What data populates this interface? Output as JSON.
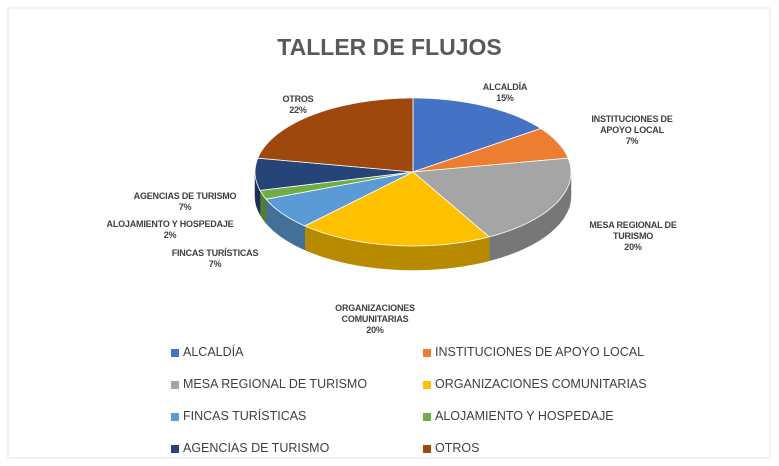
{
  "chart_data": {
    "type": "pie",
    "title": "TALLER DE FLUJOS",
    "categories": [
      "ALCALDÍA",
      "INSTITUCIONES DE APOYO LOCAL",
      "MESA REGIONAL DE TURISMO",
      "ORGANIZACIONES COMUNITARIAS",
      "FINCAS TURÍSTICAS",
      "ALOJAMIENTO Y HOSPEDAJE",
      "AGENCIAS DE TURISMO",
      "OTROS"
    ],
    "values": [
      15,
      7,
      20,
      20,
      7,
      2,
      7,
      22
    ],
    "value_labels": [
      "15%",
      "7%",
      "20%",
      "20%",
      "7%",
      "2%",
      "7%",
      "22%"
    ],
    "colors": [
      "#4472c4",
      "#ed7d31",
      "#a5a5a5",
      "#ffc000",
      "#5b9bd5",
      "#70ad47",
      "#264478",
      "#9e480e"
    ],
    "legend": "bottom"
  }
}
